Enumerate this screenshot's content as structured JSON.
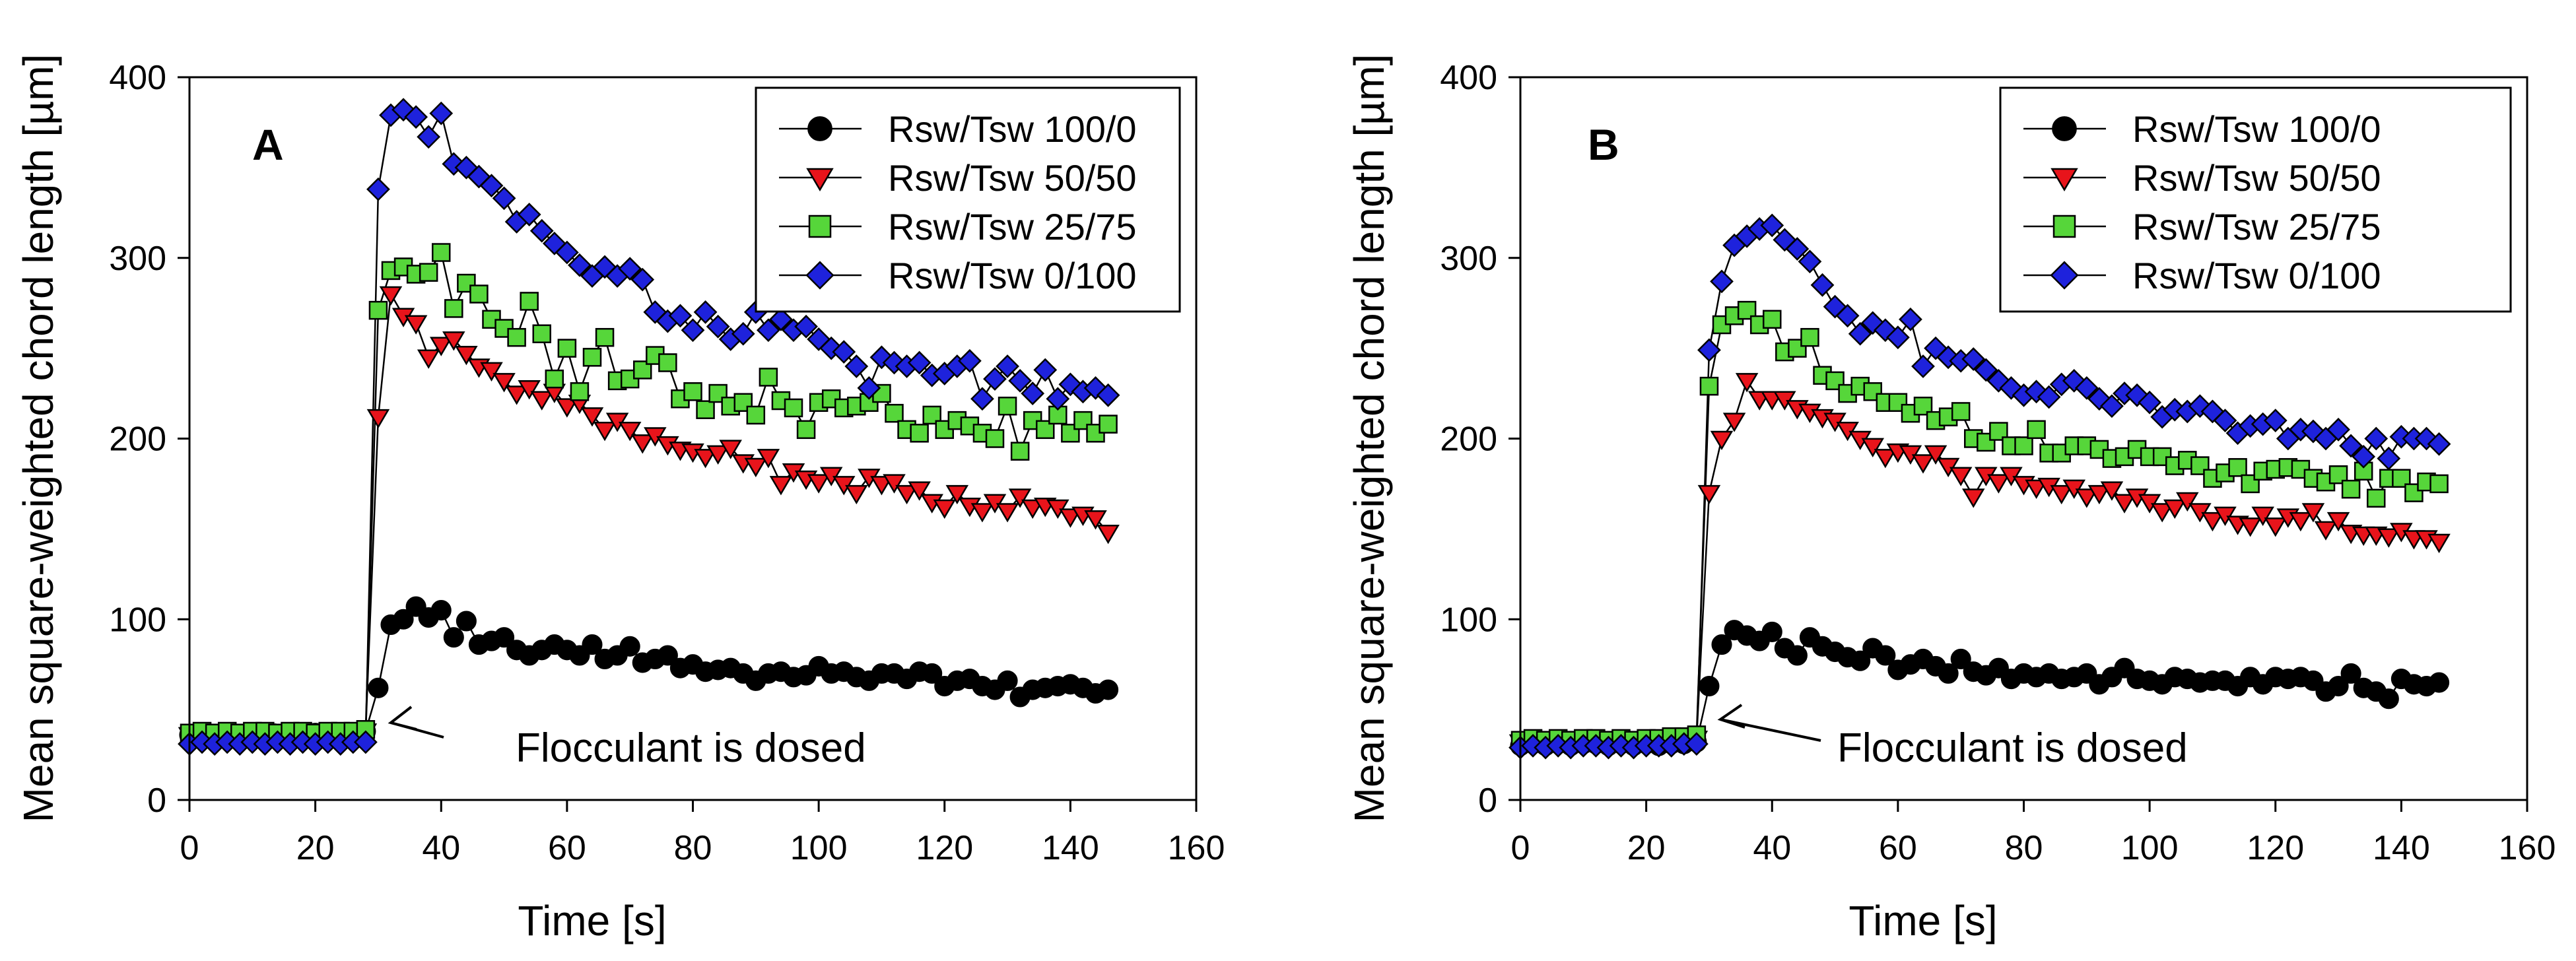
{
  "chart_data": [
    {
      "type": "scatter",
      "panel_label": "A",
      "title": "",
      "xlabel": "Time [s]",
      "ylabel": "Mean square-weighted chord length [µm]",
      "xlim": [
        0,
        160
      ],
      "ylim": [
        0,
        400
      ],
      "xticks": [
        "0",
        "20",
        "40",
        "60",
        "80",
        "100",
        "120",
        "140",
        "160"
      ],
      "yticks": [
        "0",
        "100",
        "200",
        "300",
        "400"
      ],
      "annotation": {
        "text": "Flocculant is dosed",
        "points_to": [
          29,
          35
        ]
      },
      "legend_position": "top-right",
      "x": [
        0,
        2,
        4,
        6,
        8,
        10,
        12,
        14,
        16,
        18,
        20,
        22,
        24,
        26,
        28,
        30,
        32,
        34,
        36,
        38,
        40,
        42,
        44,
        46,
        48,
        50,
        52,
        54,
        56,
        58,
        60,
        62,
        64,
        66,
        68,
        70,
        72,
        74,
        76,
        78,
        80,
        82,
        84,
        86,
        88,
        90,
        92,
        94,
        96,
        98,
        100,
        102,
        104,
        106,
        108,
        110,
        112,
        114,
        116,
        118,
        120,
        122,
        124,
        126,
        128,
        130,
        132,
        134,
        136,
        138,
        140,
        142,
        144,
        146
      ],
      "series": [
        {
          "name": "Rsw/Tsw 100/0",
          "marker": "circle",
          "color": "#000000",
          "values": [
            36,
            37,
            36,
            37,
            36,
            37,
            37,
            36,
            37,
            36,
            37,
            36,
            37,
            37,
            38,
            62,
            97,
            100,
            107,
            101,
            105,
            90,
            99,
            86,
            88,
            90,
            83,
            80,
            83,
            86,
            83,
            80,
            86,
            78,
            80,
            85,
            76,
            78,
            80,
            73,
            75,
            71,
            72,
            73,
            70,
            66,
            70,
            71,
            68,
            69,
            74,
            70,
            71,
            68,
            66,
            70,
            70,
            67,
            71,
            70,
            63,
            66,
            67,
            63,
            61,
            66,
            57,
            61,
            62,
            63,
            64,
            62,
            59,
            61
          ]
        },
        {
          "name": "Rsw/Tsw 50/50",
          "marker": "triangle-down",
          "color": "#e8141b",
          "values": [
            36,
            37,
            37,
            37,
            36,
            37,
            38,
            37,
            37,
            37,
            38,
            37,
            38,
            37,
            38,
            212,
            280,
            268,
            264,
            245,
            252,
            255,
            247,
            240,
            238,
            232,
            225,
            228,
            222,
            226,
            218,
            220,
            213,
            205,
            210,
            205,
            198,
            202,
            197,
            194,
            193,
            190,
            192,
            195,
            187,
            185,
            190,
            175,
            182,
            178,
            176,
            180,
            175,
            170,
            179,
            175,
            176,
            170,
            172,
            165,
            162,
            170,
            163,
            160,
            165,
            160,
            168,
            162,
            163,
            162,
            157,
            158,
            156,
            148
          ]
        },
        {
          "name": "Rsw/Tsw 25/75",
          "marker": "square",
          "color": "#56d63a",
          "values": [
            37,
            38,
            37,
            38,
            37,
            38,
            38,
            37,
            38,
            38,
            37,
            38,
            38,
            38,
            39,
            271,
            293,
            295,
            291,
            292,
            303,
            272,
            286,
            280,
            266,
            261,
            256,
            276,
            258,
            233,
            250,
            226,
            245,
            256,
            232,
            233,
            238,
            246,
            242,
            222,
            226,
            216,
            225,
            218,
            220,
            213,
            234,
            221,
            217,
            205,
            220,
            222,
            217,
            218,
            220,
            225,
            214,
            205,
            203,
            213,
            205,
            210,
            207,
            203,
            200,
            218,
            193,
            210,
            205,
            213,
            203,
            210,
            203,
            208
          ]
        },
        {
          "name": "Rsw/Tsw 0/100",
          "marker": "diamond",
          "color": "#1e22dc",
          "values": [
            31,
            32,
            31,
            32,
            31,
            32,
            31,
            32,
            31,
            32,
            31,
            32,
            31,
            32,
            32,
            338,
            379,
            382,
            378,
            367,
            380,
            352,
            350,
            345,
            340,
            333,
            320,
            324,
            315,
            308,
            303,
            296,
            290,
            295,
            290,
            294,
            288,
            270,
            265,
            268,
            260,
            270,
            262,
            255,
            258,
            270,
            260,
            266,
            260,
            262,
            255,
            250,
            248,
            240,
            228,
            245,
            242,
            240,
            242,
            235,
            236,
            240,
            243,
            222,
            233,
            240,
            232,
            225,
            238,
            222,
            230,
            226,
            228,
            224
          ]
        }
      ]
    },
    {
      "type": "scatter",
      "panel_label": "B",
      "title": "",
      "xlabel": "Time [s]",
      "ylabel": "Mean square-weighted chord length [µm]",
      "xlim": [
        0,
        160
      ],
      "ylim": [
        0,
        400
      ],
      "xticks": [
        "0",
        "20",
        "40",
        "60",
        "80",
        "100",
        "120",
        "140",
        "160"
      ],
      "yticks": [
        "0",
        "100",
        "200",
        "300",
        "400"
      ],
      "annotation": {
        "text": "Flocculant is dosed",
        "points_to": [
          29,
          35
        ]
      },
      "legend_position": "top-right",
      "x": [
        0,
        2,
        4,
        6,
        8,
        10,
        12,
        14,
        16,
        18,
        20,
        22,
        24,
        26,
        28,
        30,
        32,
        34,
        36,
        38,
        40,
        42,
        44,
        46,
        48,
        50,
        52,
        54,
        56,
        58,
        60,
        62,
        64,
        66,
        68,
        70,
        72,
        74,
        76,
        78,
        80,
        82,
        84,
        86,
        88,
        90,
        92,
        94,
        96,
        98,
        100,
        102,
        104,
        106,
        108,
        110,
        112,
        114,
        116,
        118,
        120,
        122,
        124,
        126,
        128,
        130,
        132,
        134,
        136,
        138,
        140,
        142,
        144,
        146
      ],
      "series": [
        {
          "name": "Rsw/Tsw 100/0",
          "marker": "circle",
          "color": "#000000",
          "values": [
            30,
            31,
            30,
            31,
            30,
            31,
            31,
            30,
            31,
            30,
            31,
            30,
            31,
            31,
            32,
            63,
            86,
            94,
            91,
            88,
            93,
            84,
            80,
            90,
            85,
            82,
            79,
            77,
            84,
            80,
            72,
            75,
            78,
            74,
            70,
            78,
            71,
            69,
            73,
            67,
            70,
            68,
            70,
            67,
            68,
            70,
            64,
            68,
            73,
            67,
            66,
            64,
            68,
            67,
            65,
            66,
            66,
            63,
            68,
            64,
            68,
            67,
            68,
            66,
            60,
            63,
            70,
            62,
            60,
            56,
            67,
            64,
            63,
            65
          ]
        },
        {
          "name": "Rsw/Tsw 50/50",
          "marker": "triangle-down",
          "color": "#e8141b",
          "values": [
            32,
            33,
            32,
            33,
            32,
            33,
            33,
            32,
            33,
            32,
            33,
            33,
            33,
            33,
            34,
            170,
            200,
            210,
            232,
            222,
            222,
            222,
            217,
            215,
            212,
            210,
            205,
            200,
            196,
            190,
            193,
            192,
            187,
            192,
            185,
            180,
            168,
            180,
            176,
            180,
            175,
            173,
            174,
            170,
            173,
            168,
            170,
            172,
            165,
            168,
            165,
            160,
            162,
            166,
            160,
            155,
            158,
            153,
            152,
            158,
            152,
            157,
            155,
            160,
            150,
            155,
            148,
            147,
            147,
            146,
            149,
            145,
            145,
            143
          ]
        },
        {
          "name": "Rsw/Tsw 25/75",
          "marker": "square",
          "color": "#56d63a",
          "values": [
            33,
            34,
            33,
            34,
            33,
            34,
            34,
            33,
            34,
            33,
            34,
            34,
            35,
            35,
            36,
            229,
            263,
            268,
            271,
            263,
            266,
            248,
            250,
            256,
            235,
            232,
            225,
            229,
            226,
            220,
            220,
            214,
            218,
            210,
            212,
            215,
            200,
            198,
            204,
            196,
            196,
            205,
            192,
            192,
            196,
            196,
            194,
            189,
            190,
            194,
            190,
            190,
            185,
            188,
            185,
            178,
            181,
            184,
            175,
            182,
            183,
            184,
            183,
            178,
            176,
            180,
            172,
            182,
            167,
            178,
            178,
            170,
            176,
            175
          ]
        },
        {
          "name": "Rsw/Tsw 0/100",
          "marker": "diamond",
          "color": "#1e22dc",
          "values": [
            29,
            30,
            29,
            30,
            29,
            30,
            30,
            29,
            30,
            29,
            30,
            30,
            30,
            31,
            31,
            249,
            287,
            307,
            312,
            316,
            318,
            310,
            305,
            298,
            285,
            273,
            268,
            258,
            264,
            260,
            256,
            266,
            240,
            250,
            245,
            243,
            244,
            238,
            232,
            228,
            224,
            226,
            223,
            230,
            232,
            228,
            222,
            218,
            225,
            224,
            220,
            212,
            216,
            215,
            218,
            215,
            210,
            203,
            207,
            208,
            210,
            200,
            205,
            204,
            200,
            205,
            196,
            190,
            200,
            189,
            201,
            200,
            200,
            197
          ]
        }
      ]
    }
  ]
}
